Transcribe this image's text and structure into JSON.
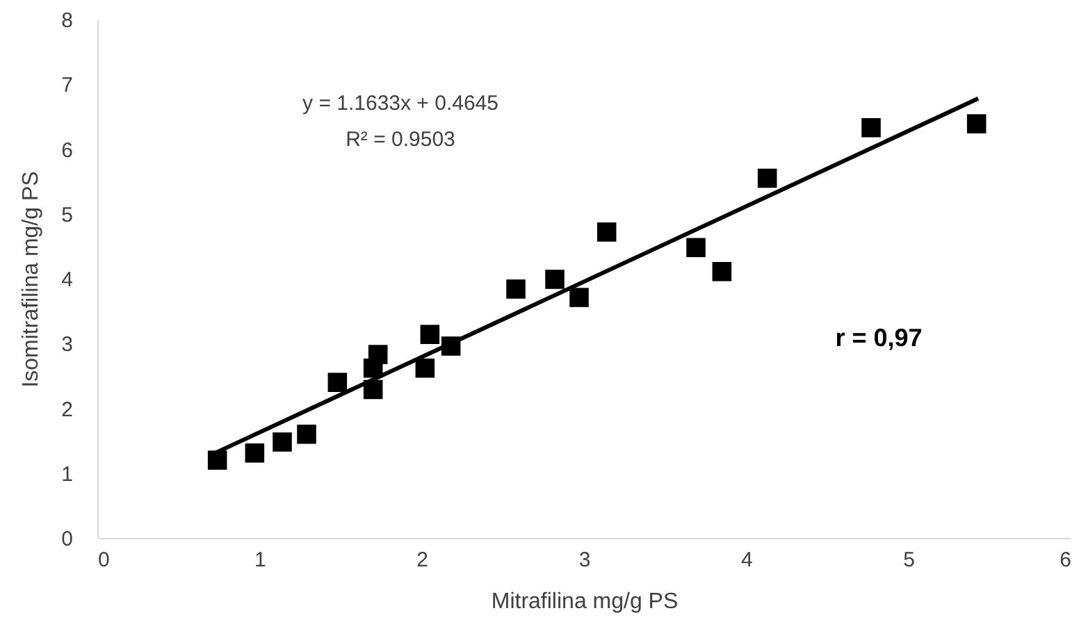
{
  "chart_data": {
    "type": "scatter",
    "xlabel": "Mitrafilina mg/g PS",
    "ylabel": "Isomitrafilina mg/g PS",
    "xlim": [
      0,
      6
    ],
    "xticks": [
      0,
      1,
      2,
      3,
      4,
      5,
      6
    ],
    "ylim": [
      0,
      8
    ],
    "yticks": [
      0,
      1,
      2,
      3,
      4,
      5,
      6,
      7,
      8
    ],
    "grid": false,
    "annotations": [
      "y = 1.1633x + 0.4645",
      "R² = 0.9503",
      "r = 0,97"
    ],
    "series": [
      {
        "color": "#000000",
        "marker": "square",
        "x": [
          0.74,
          0.97,
          1.14,
          1.29,
          1.48,
          1.7,
          1.7,
          1.73,
          2.02,
          2.05,
          2.18,
          2.58,
          2.82,
          2.97,
          3.14,
          3.69,
          3.85,
          4.13,
          4.77,
          5.42
        ],
        "values": [
          1.2,
          1.31,
          1.48,
          1.6,
          2.4,
          2.29,
          2.62,
          2.83,
          2.62,
          3.14,
          2.96,
          3.84,
          3.99,
          3.71,
          4.72,
          4.48,
          4.11,
          5.55,
          6.33,
          6.39
        ]
      },
      {
        "type": "line",
        "color": "#000000",
        "marker": "none",
        "line_style": "solid",
        "x": [
          0.7,
          5.43
        ],
        "values": [
          1.28,
          6.78
        ]
      }
    ]
  }
}
